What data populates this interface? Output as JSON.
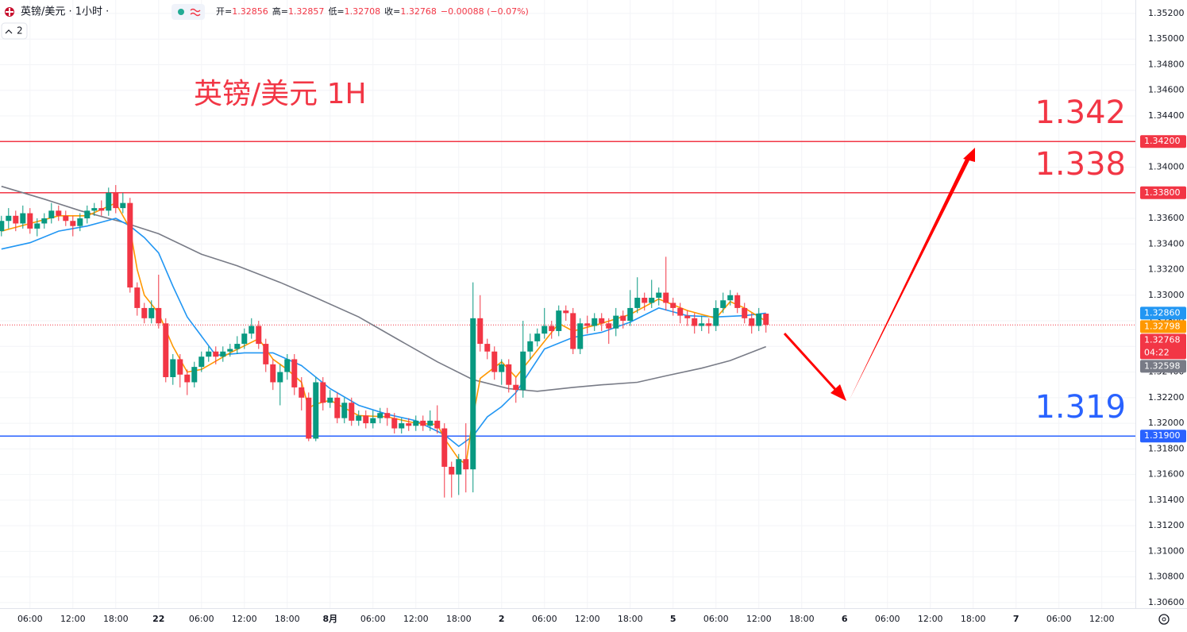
{
  "chart_data": {
    "type": "candlestick",
    "title": "英镑/美元 1H",
    "legend_text": {
      "symbol": "英镑/美元 · 1小时 ·",
      "interval_button": "2",
      "ohlc": [
        {
          "label": "开=",
          "value": 1.32856
        },
        {
          "label": "高=",
          "value": 1.32857
        },
        {
          "label": "低=",
          "value": 1.32708
        },
        {
          "label": "收=",
          "value": 1.32768
        }
      ],
      "change": "−0.00088 (−0.07%)"
    },
    "up_color": "#089981",
    "down_color": "#f23645",
    "xlim": [
      -0.2,
      158.7
    ],
    "ylim": [
      1.30556,
      1.35305
    ],
    "xticks": [
      {
        "value": 4,
        "label": "06:00"
      },
      {
        "value": 10,
        "label": "12:00"
      },
      {
        "value": 16,
        "label": "18:00"
      },
      22,
      {
        "value": 28,
        "label": "06:00"
      },
      {
        "value": 34,
        "label": "12:00"
      },
      {
        "value": 40,
        "label": "18:00"
      },
      {
        "value": 46,
        "label": "8月"
      },
      {
        "value": 52,
        "label": "06:00"
      },
      {
        "value": 58,
        "label": "12:00"
      },
      {
        "value": 64,
        "label": "18:00"
      },
      {
        "value": 70,
        "label": "2"
      },
      {
        "value": 76,
        "label": "06:00"
      },
      {
        "value": 82,
        "label": "12:00"
      },
      {
        "value": 88,
        "label": "18:00"
      },
      {
        "value": 94,
        "label": "5"
      },
      {
        "value": 100,
        "label": "06:00"
      },
      {
        "value": 106,
        "label": "12:00"
      },
      {
        "value": 112,
        "label": "18:00"
      },
      {
        "value": 118,
        "label": "6"
      },
      {
        "value": 124,
        "label": "06:00"
      },
      {
        "value": 130,
        "label": "12:00"
      },
      {
        "value": 136,
        "label": "18:00"
      },
      {
        "value": 142,
        "label": "7"
      },
      {
        "value": 148,
        "label": "06:00"
      },
      {
        "value": 154,
        "label": "12:00"
      }
    ],
    "yticks": [
      {
        "value": 1.352,
        "label": "1.35200"
      },
      {
        "value": 1.35,
        "label": "1.35000"
      },
      {
        "value": 1.348,
        "label": "1.34800"
      },
      {
        "value": 1.346,
        "label": "1.34600"
      },
      {
        "value": 1.344,
        "label": "1.34400"
      },
      {
        "value": 1.342,
        "label": "1.34200"
      },
      {
        "value": 1.34,
        "label": "1.34000"
      },
      {
        "value": 1.338,
        "label": "1.33800"
      },
      {
        "value": 1.336,
        "label": "1.33600"
      },
      {
        "value": 1.334,
        "label": "1.33400"
      },
      {
        "value": 1.332,
        "label": "1.33200"
      },
      {
        "value": 1.33,
        "label": "1.33000"
      },
      {
        "value": 1.328,
        "label": "1.32800"
      },
      {
        "value": 1.326,
        "label": "1.32600"
      },
      {
        "value": 1.324,
        "label": "1.32400"
      },
      {
        "value": 1.322,
        "label": "1.32200"
      },
      {
        "value": 1.32,
        "label": "1.32000"
      },
      {
        "value": 1.318,
        "label": "1.31800"
      },
      {
        "value": 1.316,
        "label": "1.31600"
      },
      {
        "value": 1.314,
        "label": "1.31400"
      },
      {
        "value": 1.312,
        "label": "1.31200"
      },
      {
        "value": 1.31,
        "label": "1.31000"
      },
      {
        "value": 1.308,
        "label": "1.30800"
      },
      {
        "value": 1.306,
        "label": "1.30600"
      }
    ],
    "x": [
      0,
      1,
      2,
      3,
      4,
      5,
      6,
      7,
      8,
      9,
      10,
      11,
      12,
      13,
      14,
      15,
      16,
      17,
      18,
      19,
      20,
      21,
      22,
      23,
      24,
      25,
      26,
      27,
      28,
      29,
      30,
      31,
      32,
      33,
      34,
      35,
      36,
      37,
      38,
      39,
      40,
      41,
      42,
      43,
      44,
      45,
      46,
      47,
      48,
      49,
      50,
      51,
      52,
      53,
      54,
      55,
      56,
      57,
      58,
      59,
      60,
      61,
      62,
      63,
      64,
      65,
      66,
      67,
      68,
      69,
      70,
      71,
      72,
      73,
      74,
      75,
      76,
      77,
      78,
      79,
      80,
      81,
      82,
      83,
      84,
      85,
      86,
      87,
      88,
      89,
      90,
      91,
      92,
      93,
      94,
      95,
      96,
      97,
      98,
      99,
      100,
      101,
      102,
      103,
      104,
      105,
      106,
      107
    ],
    "open": [
      1.335,
      1.3358,
      1.3362,
      1.3356,
      1.3364,
      1.3352,
      1.3356,
      1.336,
      1.3366,
      1.3362,
      1.3358,
      1.3354,
      1.336,
      1.3366,
      1.3368,
      1.3366,
      1.338,
      1.3368,
      1.3372,
      1.3306,
      1.329,
      1.3282,
      1.329,
      1.3278,
      1.3236,
      1.325,
      1.3238,
      1.3232,
      1.3244,
      1.3252,
      1.3256,
      1.3252,
      1.3256,
      1.3258,
      1.3262,
      1.327,
      1.3276,
      1.3262,
      1.3246,
      1.3232,
      1.324,
      1.325,
      1.3228,
      1.322,
      1.3188,
      1.3232,
      1.3216,
      1.322,
      1.3204,
      1.3216,
      1.3202,
      1.3206,
      1.32,
      1.3204,
      1.3208,
      1.3204,
      1.3196,
      1.32,
      1.3198,
      1.3202,
      1.3198,
      1.3202,
      1.3196,
      1.3166,
      1.316,
      1.3172,
      1.3164,
      1.3282,
      1.3262,
      1.3256,
      1.324,
      1.3246,
      1.323,
      1.3226,
      1.3256,
      1.3264,
      1.327,
      1.3276,
      1.3272,
      1.3288,
      1.3286,
      1.3258,
      1.3278,
      1.3276,
      1.3282,
      1.3278,
      1.3274,
      1.3284,
      1.328,
      1.329,
      1.3298,
      1.3294,
      1.3298,
      1.3302,
      1.3294,
      1.329,
      1.3284,
      1.3282,
      1.3276,
      1.3278,
      1.3276,
      1.329,
      1.3296,
      1.33,
      1.329,
      1.3282,
      1.3276,
      1.32856
    ],
    "high": [
      1.3362,
      1.3368,
      1.3366,
      1.337,
      1.3368,
      1.336,
      1.3364,
      1.3372,
      1.337,
      1.3366,
      1.3362,
      1.3364,
      1.337,
      1.3372,
      1.3374,
      1.3384,
      1.3386,
      1.338,
      1.3376,
      1.331,
      1.3294,
      1.3296,
      1.3316,
      1.3282,
      1.3254,
      1.3254,
      1.3242,
      1.3248,
      1.3256,
      1.326,
      1.326,
      1.326,
      1.3262,
      1.3268,
      1.3274,
      1.3282,
      1.328,
      1.3266,
      1.325,
      1.3246,
      1.3254,
      1.3254,
      1.3236,
      1.3224,
      1.3236,
      1.3236,
      1.3226,
      1.3224,
      1.322,
      1.322,
      1.321,
      1.321,
      1.321,
      1.3212,
      1.3212,
      1.3208,
      1.3204,
      1.3204,
      1.3206,
      1.3206,
      1.321,
      1.3214,
      1.32,
      1.317,
      1.3176,
      1.32,
      1.331,
      1.33,
      1.3266,
      1.326,
      1.325,
      1.325,
      1.3236,
      1.328,
      1.327,
      1.3274,
      1.329,
      1.328,
      1.3292,
      1.3292,
      1.329,
      1.3282,
      1.3284,
      1.3286,
      1.3286,
      1.3282,
      1.329,
      1.3288,
      1.3304,
      1.3314,
      1.3302,
      1.3312,
      1.3306,
      1.333,
      1.3298,
      1.3294,
      1.3288,
      1.3286,
      1.3284,
      1.3282,
      1.3296,
      1.3302,
      1.3304,
      1.3302,
      1.3294,
      1.3286,
      1.329,
      1.32857
    ],
    "low": [
      1.3346,
      1.3352,
      1.335,
      1.3352,
      1.3348,
      1.3346,
      1.3352,
      1.3356,
      1.3358,
      1.3354,
      1.3346,
      1.335,
      1.3356,
      1.3362,
      1.3362,
      1.3362,
      1.3364,
      1.3364,
      1.3302,
      1.3284,
      1.3278,
      1.3278,
      1.3274,
      1.3232,
      1.323,
      1.3228,
      1.3222,
      1.3228,
      1.324,
      1.3248,
      1.3246,
      1.3248,
      1.3252,
      1.3254,
      1.3258,
      1.3266,
      1.3258,
      1.324,
      1.3226,
      1.3214,
      1.3234,
      1.3222,
      1.321,
      1.3186,
      1.3186,
      1.321,
      1.3212,
      1.32,
      1.32,
      1.3198,
      1.3198,
      1.3196,
      1.3196,
      1.32,
      1.3198,
      1.3192,
      1.3192,
      1.3194,
      1.3194,
      1.3194,
      1.3194,
      1.3192,
      1.3142,
      1.3142,
      1.3144,
      1.3146,
      1.3146,
      1.3256,
      1.325,
      1.3234,
      1.323,
      1.3224,
      1.3216,
      1.322,
      1.325,
      1.326,
      1.3266,
      1.3266,
      1.3268,
      1.328,
      1.3254,
      1.3254,
      1.327,
      1.3272,
      1.3272,
      1.3262,
      1.3268,
      1.3274,
      1.3276,
      1.3286,
      1.3288,
      1.329,
      1.3292,
      1.3288,
      1.3284,
      1.3278,
      1.3276,
      1.327,
      1.3272,
      1.327,
      1.3272,
      1.3286,
      1.3292,
      1.3286,
      1.3278,
      1.327,
      1.3272,
      1.32708
    ],
    "close": [
      1.3358,
      1.3362,
      1.3356,
      1.3364,
      1.3352,
      1.3356,
      1.336,
      1.3366,
      1.3362,
      1.3358,
      1.3354,
      1.336,
      1.3366,
      1.3368,
      1.3366,
      1.338,
      1.3368,
      1.3372,
      1.3306,
      1.329,
      1.3282,
      1.329,
      1.3278,
      1.3236,
      1.325,
      1.3238,
      1.3232,
      1.3244,
      1.3252,
      1.3256,
      1.3252,
      1.3256,
      1.3258,
      1.3262,
      1.327,
      1.3276,
      1.3262,
      1.3246,
      1.3232,
      1.324,
      1.325,
      1.3228,
      1.322,
      1.3188,
      1.3232,
      1.3216,
      1.322,
      1.3204,
      1.3216,
      1.3202,
      1.3206,
      1.32,
      1.3204,
      1.3208,
      1.3204,
      1.3196,
      1.32,
      1.3198,
      1.3202,
      1.3198,
      1.3202,
      1.3196,
      1.3166,
      1.316,
      1.3172,
      1.3164,
      1.3282,
      1.3262,
      1.3256,
      1.324,
      1.3246,
      1.323,
      1.3226,
      1.3256,
      1.3264,
      1.327,
      1.3276,
      1.3272,
      1.3288,
      1.3286,
      1.3258,
      1.3278,
      1.3276,
      1.3282,
      1.3278,
      1.3274,
      1.3284,
      1.328,
      1.329,
      1.3298,
      1.3294,
      1.3298,
      1.3302,
      1.3294,
      1.329,
      1.3284,
      1.3282,
      1.3276,
      1.3278,
      1.3276,
      1.329,
      1.3296,
      1.33,
      1.329,
      1.3282,
      1.3276,
      1.32856,
      1.32768
    ],
    "lines": [
      {
        "color": "#787b86",
        "x": [
          0,
          6,
          11,
          17,
          22,
          28,
          33,
          39,
          44,
          50,
          55,
          61,
          66,
          71,
          75,
          80,
          84,
          89,
          93,
          98,
          102,
          107
        ],
        "values": [
          1.3385,
          1.3375,
          1.3366,
          1.3357,
          1.3348,
          1.3332,
          1.3323,
          1.331,
          1.3298,
          1.3283,
          1.3267,
          1.3248,
          1.3234,
          1.3227,
          1.3225,
          1.3228,
          1.323,
          1.3232,
          1.3237,
          1.3243,
          1.3249,
          1.32598
        ]
      },
      {
        "color": "#2196f3",
        "x": [
          0,
          4,
          8,
          12,
          16,
          18,
          20,
          22,
          24,
          26,
          30,
          34,
          38,
          42,
          46,
          50,
          54,
          58,
          62,
          64,
          66,
          68,
          70,
          72,
          76,
          80,
          84,
          88,
          92,
          96,
          100,
          104,
          107
        ],
        "values": [
          1.3336,
          1.3341,
          1.335,
          1.3354,
          1.336,
          1.3354,
          1.3345,
          1.3333,
          1.3307,
          1.3283,
          1.3253,
          1.3255,
          1.3255,
          1.3245,
          1.3227,
          1.3214,
          1.3207,
          1.3202,
          1.3191,
          1.3182,
          1.319,
          1.3205,
          1.3213,
          1.3224,
          1.3258,
          1.3267,
          1.3271,
          1.3279,
          1.329,
          1.3284,
          1.3283,
          1.3284,
          1.3286
        ]
      },
      {
        "color": "#ff9800",
        "x": [
          0,
          4,
          8,
          12,
          16,
          18,
          19,
          20,
          22,
          24,
          26,
          28,
          32,
          36,
          38,
          40,
          42,
          43,
          44,
          46,
          50,
          54,
          58,
          61,
          62,
          64,
          65,
          66,
          67,
          70,
          72,
          74,
          78,
          80,
          84,
          88,
          92,
          96,
          100,
          102,
          104,
          107
        ],
        "values": [
          1.335,
          1.3356,
          1.3362,
          1.3362,
          1.3372,
          1.3352,
          1.332,
          1.33,
          1.3286,
          1.326,
          1.324,
          1.3242,
          1.3255,
          1.3266,
          1.325,
          1.3242,
          1.3232,
          1.3212,
          1.3215,
          1.3218,
          1.3206,
          1.3205,
          1.32,
          1.3199,
          1.3188,
          1.3172,
          1.3168,
          1.3205,
          1.3235,
          1.3248,
          1.3236,
          1.325,
          1.3278,
          1.3272,
          1.3278,
          1.3285,
          1.3297,
          1.3288,
          1.3282,
          1.3295,
          1.329,
          1.32798
        ]
      }
    ],
    "levels": [
      {
        "value": 1.342,
        "label": "1.342",
        "axis_label": "1.34200",
        "color": "#f23645"
      },
      {
        "value": 1.338,
        "label": "1.338",
        "axis_label": "1.33800",
        "color": "#f23645"
      },
      {
        "value": 1.319,
        "label": "1.319",
        "axis_label": "1.31900",
        "color": "#2962ff"
      }
    ],
    "price_labels": [
      {
        "value": 1.3286,
        "label": "1.32860",
        "color": "#2196f3"
      },
      {
        "value": 1.32798,
        "label": "1.32798",
        "color": "#ff9800"
      },
      {
        "value": 1.32768,
        "label": "1.32768",
        "countdown": "04:22",
        "color": "#f23645"
      },
      {
        "value": 1.32598,
        "label": "1.32598",
        "color": "#787b86"
      }
    ]
  }
}
